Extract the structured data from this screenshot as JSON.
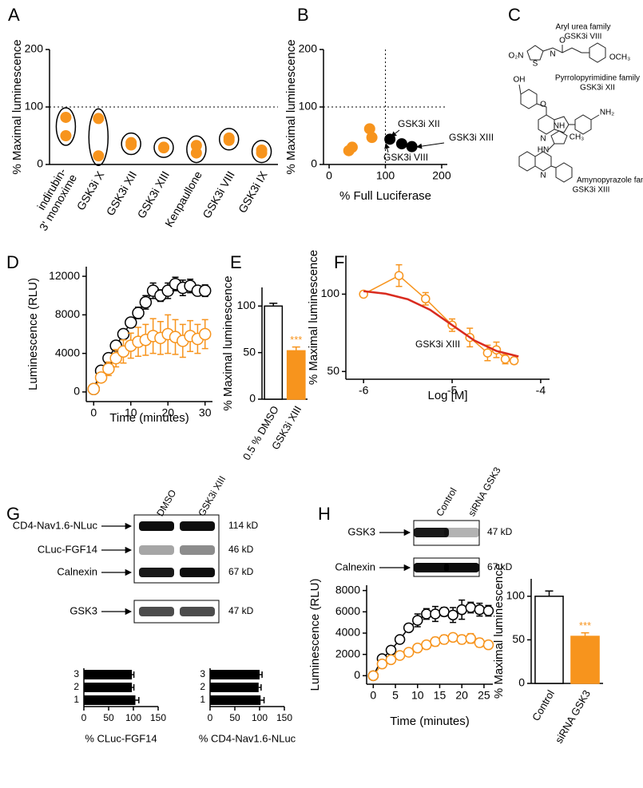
{
  "panel_labels": [
    "A",
    "B",
    "C",
    "D",
    "E",
    "F",
    "G",
    "H"
  ],
  "structures": [
    {
      "family": "Aryl urea family",
      "compound": "GSK3i VIII",
      "atoms": [
        "O₂N",
        "S",
        "N",
        "O",
        "OCH₃"
      ]
    },
    {
      "family": "Pyrrolopyrimidine family",
      "compound": "GSK3i XII",
      "atoms": [
        "OH",
        "O",
        "N",
        "NH₂"
      ]
    },
    {
      "family": "Amynopyrazole family",
      "compound": "GSK3i XIII",
      "atoms": [
        "HN",
        "NH",
        "CH₃",
        "N"
      ]
    }
  ],
  "blots": [
    {
      "lanes": [
        "DMSO",
        "GSK3i XIII"
      ],
      "rows": [
        {
          "name": "CD4-Nav1.6-NLuc",
          "size": "114 kD"
        },
        {
          "name": "CLuc-FGF14",
          "size": "46 kD"
        },
        {
          "name": "Calnexin",
          "size": "67 kD"
        },
        {
          "name": "GSK3",
          "size": "47 kD"
        }
      ]
    },
    {
      "lanes": [
        "Control",
        "siRNA GSK3"
      ],
      "rows": [
        {
          "name": "GSK3",
          "size": "47 kD"
        },
        {
          "name": "Calnexin",
          "size": "67 kD"
        }
      ]
    }
  ],
  "chart_data": [
    {
      "type": "dot",
      "ylabel": "% Maximal luminescence",
      "categories": [
        [
          "indirubin-",
          "3' monoxime"
        ],
        "GSK3i X",
        "GSK3i XII",
        "GSK3i XIII",
        "Kenpaullone",
        "GSK3i VIII",
        "GSK3i IX"
      ],
      "values": [
        [
          82,
          50
        ],
        [
          80,
          15
        ],
        [
          38,
          34
        ],
        [
          30,
          29
        ],
        [
          33,
          20
        ],
        [
          46,
          42
        ],
        [
          25,
          20
        ]
      ],
      "color": "#f7941d",
      "ylim": [
        0,
        200
      ],
      "yticks": [
        0,
        100,
        200
      ],
      "reference_y": 100
    },
    {
      "type": "scatter",
      "xlabel": "% Full Luciferase",
      "ylabel": "% Maximal luminescence",
      "series": [
        {
          "color": "#f7941d",
          "x": [
            35,
            41,
            72,
            76
          ],
          "values": [
            24,
            30,
            62,
            47
          ]
        },
        {
          "color": "#000000",
          "x": [
            108,
            129,
            147
          ],
          "values": [
            44,
            36,
            31
          ]
        }
      ],
      "xlim": [
        -10,
        210
      ],
      "ylim": [
        0,
        200
      ],
      "xticks": [
        0,
        100,
        200
      ],
      "yticks": [
        0,
        100,
        200
      ],
      "reference_x": 100,
      "reference_y": 100,
      "annotations": [
        "GSK3i XII",
        "GSK3i XIII",
        "GSK3i VIII"
      ]
    },
    {
      "type": "line",
      "xlabel": "Time (minutes)",
      "ylabel": "Luminescence (RLU)",
      "series": [
        {
          "color": "#000000",
          "markers": true,
          "x": [
            0,
            2,
            4,
            6,
            8,
            10,
            12,
            14,
            16,
            18,
            20,
            22,
            24,
            26,
            28,
            30
          ],
          "values": [
            300,
            2200,
            3500,
            4800,
            6000,
            7200,
            8200,
            9300,
            10500,
            10000,
            10500,
            11200,
            10800,
            11000,
            10500,
            10500
          ],
          "errors": [
            300,
            400,
            300,
            300,
            400,
            400,
            600,
            700,
            800,
            600,
            800,
            700,
            800,
            700,
            500,
            600
          ]
        },
        {
          "color": "#f7941d",
          "markers": true,
          "x": [
            0,
            2,
            4,
            6,
            8,
            10,
            12,
            14,
            16,
            18,
            20,
            22,
            24,
            26,
            28,
            30
          ],
          "values": [
            300,
            1500,
            2400,
            3500,
            4200,
            4800,
            5200,
            5400,
            5800,
            5600,
            6000,
            5700,
            5300,
            5800,
            5500,
            6000
          ],
          "errors": [
            300,
            500,
            700,
            900,
            1200,
            1300,
            1500,
            1600,
            1800,
            1700,
            2000,
            1800,
            1700,
            1600,
            1500,
            1500
          ]
        }
      ],
      "xlim": [
        -2,
        32
      ],
      "ylim": [
        -1000,
        13000
      ],
      "xticks": [
        0,
        10,
        20,
        30
      ],
      "yticks": [
        0,
        4000,
        8000,
        12000
      ]
    },
    {
      "type": "bar",
      "ylabel": "% Maximal luminescence",
      "categories": [
        "0.5 % DMSO",
        "GSK3i XIII"
      ],
      "values": [
        100,
        52
      ],
      "errors": [
        3,
        4
      ],
      "colors": [
        "#ffffff",
        "#f7941d"
      ],
      "edgecolors": [
        "#000000",
        "#f7941d"
      ],
      "ylim": [
        0,
        120
      ],
      "yticks": [
        0,
        50,
        100
      ],
      "annotation": "***"
    },
    {
      "type": "line",
      "xlabel": "Log [M]",
      "ylabel": "% Maximal luminescence",
      "annotations": [
        "GSK3i XIII"
      ],
      "series": [
        {
          "color": "#f7941d",
          "markers": true,
          "x": [
            -6,
            -5.6,
            -5.3,
            -5,
            -4.8,
            -4.6,
            -4.5,
            -4.4,
            -4.3
          ],
          "values": [
            100,
            112,
            97,
            80,
            72,
            62,
            64,
            58,
            57
          ],
          "errors": [
            1,
            7,
            4,
            4,
            6,
            5,
            5,
            3,
            2
          ]
        },
        {
          "color": "#d92b1f",
          "markers": false,
          "x": [
            -6,
            -5.75,
            -5.5,
            -5.25,
            -5,
            -4.75,
            -4.5,
            -4.25
          ],
          "values": [
            101.9,
            100.3,
            96.7,
            89.9,
            80,
            70.1,
            63.3,
            59.7
          ]
        }
      ],
      "xlim": [
        -6.2,
        -3.9
      ],
      "ylim": [
        45,
        125
      ],
      "xticks": [
        -6,
        -5,
        -4
      ],
      "yticks": [
        50,
        100
      ]
    },
    {
      "type": "hbar",
      "xlabel": "% CLuc-FGF14",
      "categories": [
        "1",
        "2",
        "3"
      ],
      "values": [
        104,
        97,
        97
      ],
      "errors": [
        7,
        4,
        4
      ],
      "color": "#000000",
      "xlim": [
        0,
        150
      ],
      "xticks": [
        0,
        50,
        100,
        150
      ]
    },
    {
      "type": "hbar",
      "xlabel": "% CD4-Nav1.6-NLuc",
      "categories": [
        "1",
        "2",
        "3"
      ],
      "values": [
        102,
        98,
        100
      ],
      "errors": [
        7,
        5,
        5
      ],
      "color": "#000000",
      "xlim": [
        0,
        150
      ],
      "xticks": [
        0,
        50,
        100,
        150
      ]
    },
    {
      "type": "line",
      "xlabel": "Time (minutes)",
      "ylabel": "Luminescence (RLU)",
      "series": [
        {
          "color": "#000000",
          "markers": true,
          "x": [
            0,
            2,
            4,
            6,
            8,
            10,
            12,
            14,
            16,
            18,
            20,
            22,
            24,
            26
          ],
          "values": [
            0,
            1600,
            2400,
            3400,
            4500,
            5200,
            5800,
            5800,
            6000,
            5700,
            6200,
            6400,
            6200,
            6100
          ],
          "errors": [
            100,
            300,
            250,
            300,
            350,
            600,
            500,
            700,
            400,
            700,
            900,
            500,
            600,
            500
          ]
        },
        {
          "color": "#f7941d",
          "markers": true,
          "x": [
            0,
            2,
            4,
            6,
            8,
            10,
            12,
            14,
            16,
            18,
            20,
            22,
            24,
            26
          ],
          "values": [
            0,
            1100,
            1500,
            1900,
            2200,
            2600,
            2900,
            3200,
            3400,
            3600,
            3400,
            3500,
            3100,
            2900
          ],
          "errors": [
            100,
            200,
            200,
            200,
            250,
            300,
            350,
            400,
            400,
            350,
            400,
            450,
            400,
            200
          ]
        }
      ],
      "xlim": [
        -1.5,
        27
      ],
      "ylim": [
        -800,
        8500
      ],
      "xticks": [
        0,
        5,
        10,
        15,
        20,
        25
      ],
      "yticks": [
        0,
        2000,
        4000,
        6000,
        8000
      ]
    },
    {
      "type": "bar",
      "ylabel": "% Maximal luminescence",
      "categories": [
        "Control",
        "siRNA GSK3"
      ],
      "values": [
        100,
        54
      ],
      "errors": [
        6,
        4
      ],
      "colors": [
        "#ffffff",
        "#f7941d"
      ],
      "edgecolors": [
        "#000000",
        "#f7941d"
      ],
      "ylim": [
        0,
        120
      ],
      "yticks": [
        0,
        50,
        100
      ],
      "annotation": "***"
    }
  ]
}
